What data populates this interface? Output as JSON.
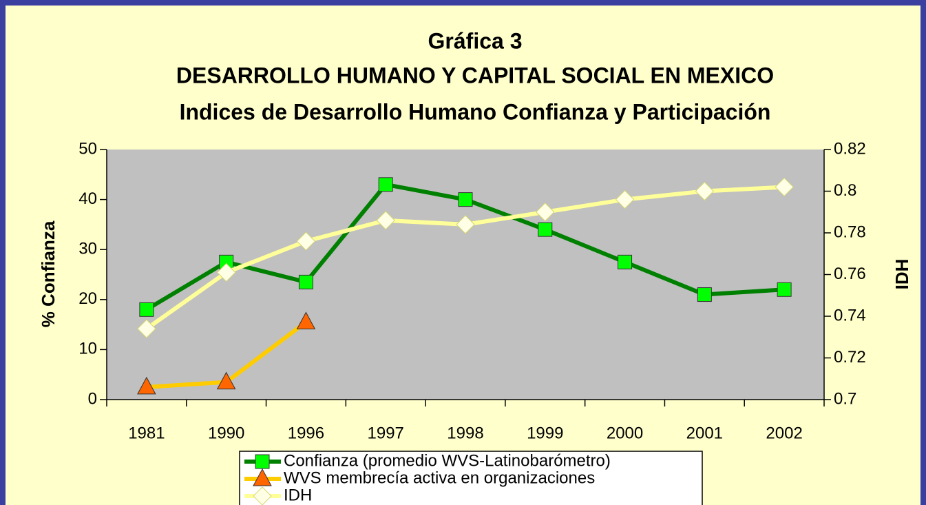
{
  "chart_data": {
    "type": "line",
    "title": "Gráfica 3",
    "subtitle": [
      "DESARROLLO HUMANO Y CAPITAL SOCIAL EN MEXICO",
      "Indices de Desarrollo Humano Confianza y Participación"
    ],
    "y_label": "% Confianza",
    "y2_label": "IDH",
    "categories": [
      "1981",
      "1990",
      "1996",
      "1997",
      "1998",
      "1999",
      "2000",
      "2001",
      "2002"
    ],
    "ylim": [
      0,
      50
    ],
    "yticks": [
      0,
      10,
      20,
      30,
      40,
      50
    ],
    "y2lim": [
      0.7,
      0.82
    ],
    "y2ticks": [
      0.7,
      0.72,
      0.74,
      0.76,
      0.78,
      0.8,
      0.82
    ],
    "series": [
      {
        "name": "Confianza (promedio WVS-Latinobarómetro)",
        "color": "#008000",
        "marker": "square",
        "marker_color": "#00ff00",
        "values": [
          18,
          27.5,
          23.5,
          43,
          40,
          34,
          27.5,
          21,
          22
        ]
      },
      {
        "name": "WVS membrecía activa en organizaciones",
        "color": "#ffcc00",
        "marker": "triangle",
        "marker_color": "#ff6600",
        "values": [
          2.5,
          3.5,
          15.5,
          null,
          null,
          null,
          null,
          null,
          null
        ]
      },
      {
        "name": "IDH",
        "color": "#ffff99",
        "marker": "diamond",
        "marker_color": "#ffffe6",
        "axis": "y2",
        "values": [
          0.734,
          0.761,
          0.776,
          0.786,
          0.784,
          0.79,
          0.796,
          0.8,
          0.802
        ]
      }
    ]
  }
}
